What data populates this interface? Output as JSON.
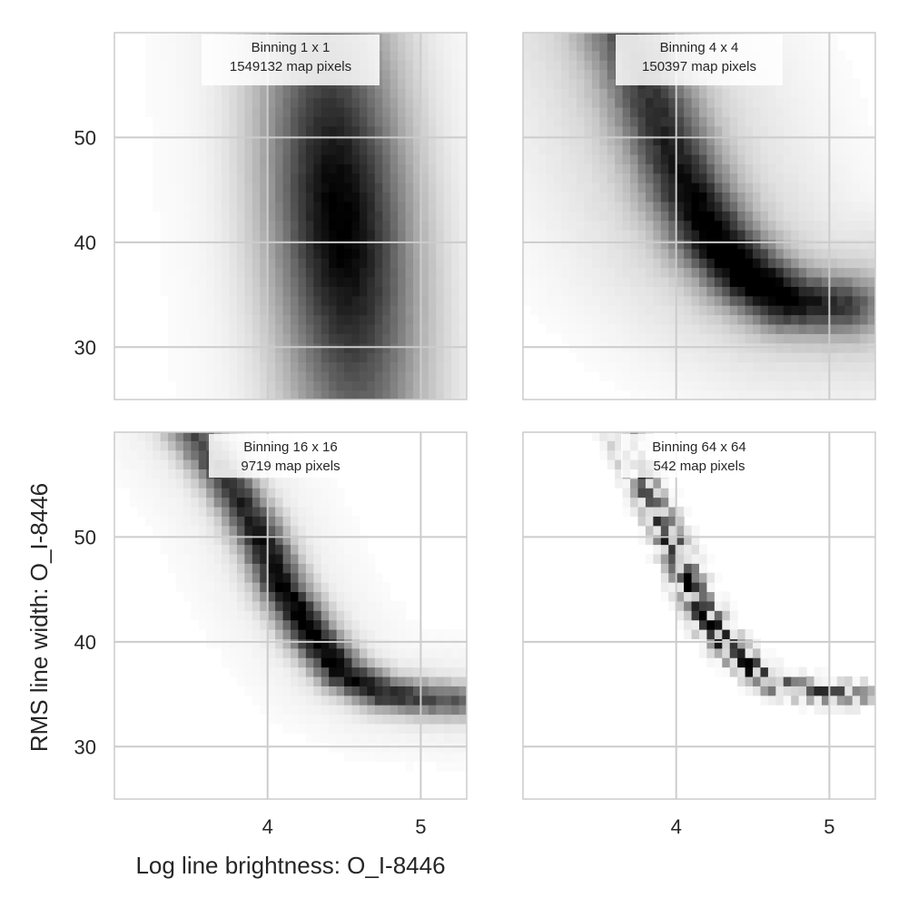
{
  "chart_data": [
    {
      "type": "heatmap",
      "title_line1": "Binning 1 x 1",
      "title_line2": "1549132 map pixels",
      "xlim": [
        3.0,
        5.3
      ],
      "ylim": [
        25,
        60
      ],
      "xticks": [
        4,
        5
      ],
      "yticks": [
        30,
        40,
        50
      ],
      "grid": true,
      "density": {
        "center_x_at_y30": 4.55,
        "slope_dx_per_dy": -0.006,
        "sigma_x": 0.32,
        "y_center": 42,
        "sigma_y": 12,
        "peak_level": 0.95,
        "noise": 0.02,
        "cell_x": 0.05,
        "cell_y": 0.9
      }
    },
    {
      "type": "heatmap",
      "title_line1": "Binning 4 x 4",
      "title_line2": "150397 map pixels",
      "xlim": [
        3.0,
        5.3
      ],
      "ylim": [
        25,
        60
      ],
      "xticks": [
        4,
        5
      ],
      "yticks": [
        30,
        40,
        50
      ],
      "grid": true,
      "density": {
        "ridge": [
          [
            3.65,
            60
          ],
          [
            3.85,
            52
          ],
          [
            4.05,
            45
          ],
          [
            4.25,
            40
          ],
          [
            4.5,
            36.5
          ],
          [
            4.75,
            34.5
          ],
          [
            5.1,
            34
          ]
        ],
        "sigma_perp": 1.9,
        "sigma_along_x": 0.45,
        "center_x": 4.45,
        "peak_level": 0.95,
        "halo": 0.18,
        "noise": 0.05,
        "cell_x": 0.05,
        "cell_y": 0.9
      }
    },
    {
      "type": "heatmap",
      "title_line1": "Binning 16 x 16",
      "title_line2": "9719 map pixels",
      "xlim": [
        3.0,
        5.3
      ],
      "ylim": [
        25,
        60
      ],
      "xticks": [
        4,
        5
      ],
      "yticks": [
        30,
        40,
        50
      ],
      "grid": true,
      "density": {
        "ridge": [
          [
            3.5,
            60
          ],
          [
            3.75,
            55
          ],
          [
            3.95,
            50
          ],
          [
            4.1,
            45
          ],
          [
            4.3,
            40.5
          ],
          [
            4.5,
            37
          ],
          [
            4.75,
            35.2
          ],
          [
            5.05,
            34.6
          ],
          [
            5.25,
            34.4
          ]
        ],
        "sigma_perp": 1.1,
        "sigma_along_x": 0.55,
        "center_x": 4.3,
        "peak_level": 0.95,
        "halo": 0.08,
        "noise": 0.09,
        "cell_x": 0.05,
        "cell_y": 0.9
      }
    },
    {
      "type": "heatmap",
      "title_line1": "Binning 64 x 64",
      "title_line2": "542 map pixels",
      "xlim": [
        3.0,
        5.3
      ],
      "ylim": [
        25,
        60
      ],
      "xticks": [
        4,
        5
      ],
      "yticks": [
        30,
        40,
        50
      ],
      "grid": true,
      "density": {
        "ridge": [
          [
            3.65,
            60
          ],
          [
            3.8,
            55
          ],
          [
            3.95,
            50
          ],
          [
            4.1,
            45
          ],
          [
            4.25,
            41
          ],
          [
            4.45,
            38
          ],
          [
            4.65,
            36
          ],
          [
            4.95,
            35.2
          ],
          [
            5.2,
            35
          ]
        ],
        "sigma_perp": 0.7,
        "sigma_along_x": 0.6,
        "center_x": 4.35,
        "peak_level": 0.95,
        "halo": 0.0,
        "noise": 0.25,
        "cell_x": 0.05,
        "cell_y": 0.9
      }
    }
  ],
  "xlabel": "Log line brightness: O_I-8446",
  "ylabel": "RMS line width: O_I-8446",
  "colors": {
    "grid": "#cccccc",
    "frame": "#cccccc",
    "cmap_low": "#ffffff",
    "cmap_high": "#000000",
    "title_box": "#ffffff"
  }
}
